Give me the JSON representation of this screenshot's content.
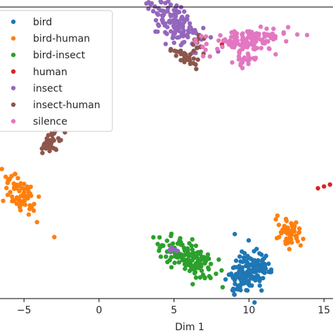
{
  "chart_data": {
    "type": "scatter",
    "xlabel": "Dim 1",
    "ylabel": "",
    "x_ticks": [
      -5,
      0,
      5,
      10,
      15
    ],
    "x_tick_labels": [
      "−5",
      "0",
      "5",
      "10",
      "15"
    ],
    "xlim": [
      -6.6,
      15.6
    ],
    "ylim": [
      -3.0,
      12.6
    ],
    "grid": false,
    "legend_position": "upper-left",
    "legend_entries": [
      "bird",
      "bird-human",
      "bird-insect",
      "human",
      "insect",
      "insect-human",
      "silence"
    ],
    "series": [
      {
        "name": "bird",
        "color": "#1f77b4",
        "clusters": [
          {
            "cx": 10.0,
            "cy": -1.6,
            "sx": 0.55,
            "sy": 0.85,
            "angle": -55,
            "n": 150
          }
        ]
      },
      {
        "name": "bird-human",
        "color": "#ff7f0e",
        "clusters": [
          {
            "cx": -5.2,
            "cy": 2.6,
            "sx": 0.4,
            "sy": 0.75,
            "angle": 55,
            "n": 75
          },
          {
            "cx": 12.7,
            "cy": 0.5,
            "sx": 0.3,
            "sy": 0.5,
            "angle": 60,
            "n": 55
          }
        ]
      },
      {
        "name": "bird-insect",
        "color": "#2ca02c",
        "clusters": [
          {
            "cx": 5.9,
            "cy": -0.8,
            "sx": 1.0,
            "sy": 0.4,
            "angle": -25,
            "n": 135
          }
        ]
      },
      {
        "name": "human",
        "color": "#d62728",
        "points": [
          [
            15.4,
            3.1
          ],
          [
            15.0,
            3.0
          ],
          [
            14.6,
            2.9
          ],
          [
            8.2,
            10.6
          ]
        ]
      },
      {
        "name": "insect",
        "color": "#9467bd",
        "clusters": [
          {
            "cx": 5.2,
            "cy": 11.6,
            "sx": 1.0,
            "sy": 0.45,
            "angle": -38,
            "n": 135
          },
          {
            "cx": 4.9,
            "cy": -0.5,
            "sx": 0.15,
            "sy": 0.12,
            "angle": 0,
            "n": 6
          }
        ]
      },
      {
        "name": "insect-human",
        "color": "#8c564b",
        "clusters": [
          {
            "cx": 5.7,
            "cy": 9.9,
            "sx": 0.15,
            "sy": 0.5,
            "angle": 70,
            "n": 30
          },
          {
            "cx": -3.2,
            "cy": 5.4,
            "sx": 0.35,
            "sy": 0.25,
            "angle": 30,
            "n": 40
          },
          {
            "cx": 6.6,
            "cy": 10.7,
            "sx": 0.2,
            "sy": 0.18,
            "angle": 40,
            "n": 10
          }
        ]
      },
      {
        "name": "silence",
        "color": "#e377c2",
        "clusters": [
          {
            "cx": 9.8,
            "cy": 10.8,
            "sx": 1.4,
            "sy": 0.3,
            "angle": 5,
            "n": 120
          },
          {
            "cx": 9.8,
            "cy": 9.8,
            "sx": 0.4,
            "sy": 0.18,
            "angle": 5,
            "n": 25
          }
        ]
      }
    ]
  }
}
